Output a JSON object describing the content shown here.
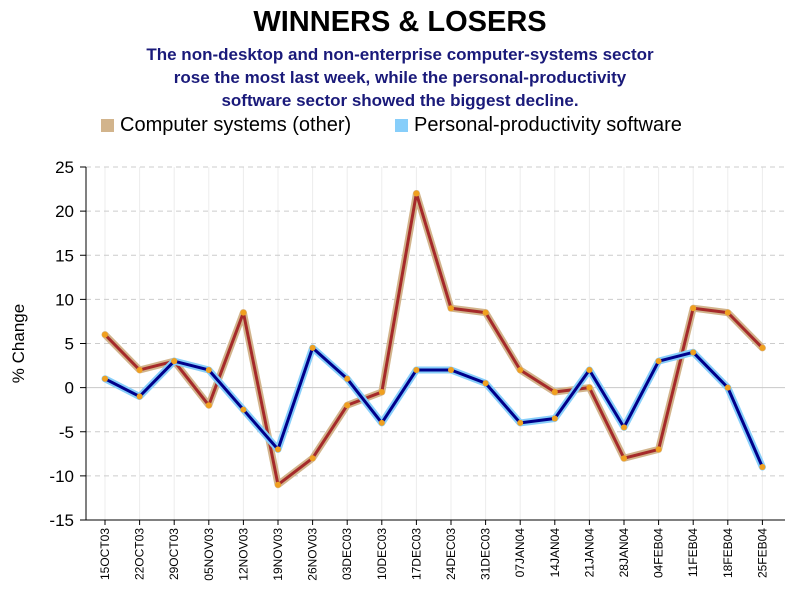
{
  "title": "WINNERS & LOSERS",
  "subtitle_lines": [
    "The non-desktop and non-enterprise computer-systems sector",
    "rose the most last week, while the personal-productivity",
    "software sector showed the biggest decline."
  ],
  "chart_data": {
    "type": "line",
    "title": "WINNERS & LOSERS",
    "xlabel": "",
    "ylabel": "% Change",
    "ylim": [
      -15,
      25
    ],
    "yticks": [
      -15,
      -10,
      -5,
      0,
      5,
      10,
      15,
      20,
      25
    ],
    "grid": true,
    "legend_placement": "top",
    "categories": [
      "15OCT03",
      "22OCT03",
      "29OCT03",
      "05NOV03",
      "12NOV03",
      "19NOV03",
      "26NOV03",
      "03DEC03",
      "10DEC03",
      "17DEC03",
      "24DEC03",
      "31DEC03",
      "07JAN04",
      "14JAN04",
      "21JAN04",
      "28JAN04",
      "04FEB04",
      "11FEB04",
      "18FEB04",
      "25FEB04"
    ],
    "series": [
      {
        "name": "Computer systems (other)",
        "color": "#d2b48c",
        "inner_color": "#a52a2a",
        "values": [
          6,
          2,
          3,
          -2,
          8.5,
          -11,
          -8,
          -2,
          -0.5,
          22,
          9,
          8.5,
          2,
          -0.5,
          0,
          -8,
          -7,
          9,
          8.5,
          4.5
        ]
      },
      {
        "name": "Personal-productivity software",
        "color": "#87cefa",
        "inner_color": "#00008b",
        "values": [
          1,
          -1,
          3,
          2,
          -2.5,
          -7,
          4.5,
          1,
          -4,
          2,
          2,
          0.5,
          -4,
          -3.5,
          2,
          -4.5,
          3,
          4,
          0,
          -9
        ]
      }
    ],
    "marker_color": "#f0a020"
  }
}
